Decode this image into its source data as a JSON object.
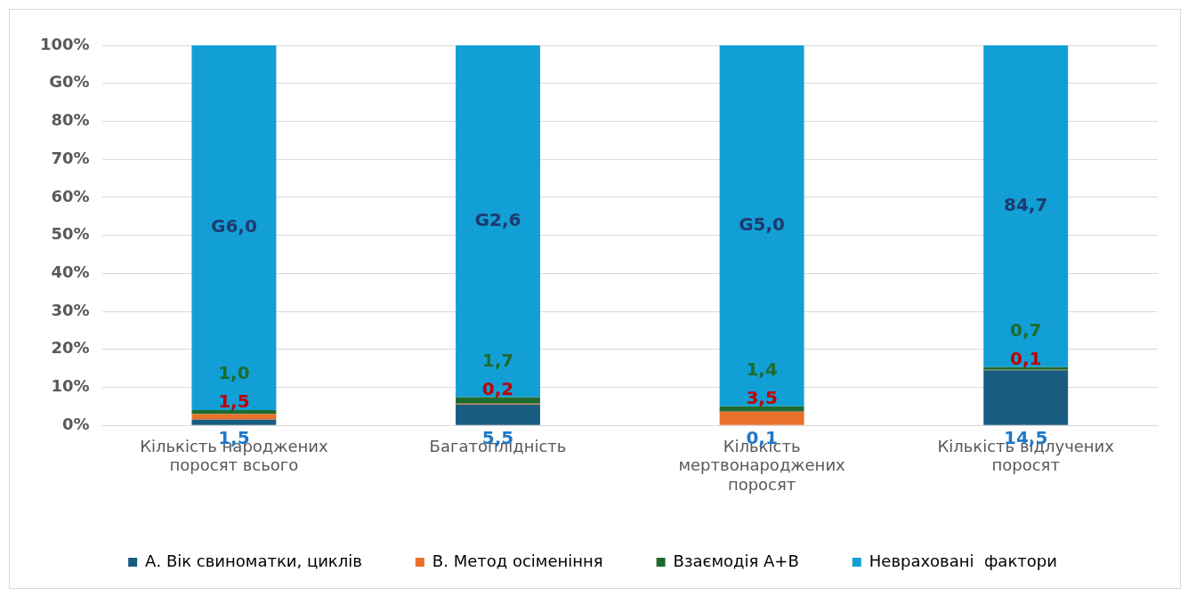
{
  "chart_data": {
    "type": "bar",
    "stacked": true,
    "categories": [
      "Кількість народжених поросят всього",
      "Багатоплідність",
      "Кількість мертвонароджених поросят",
      "Кількість відлучених поросят"
    ],
    "series": [
      {
        "name": "А. Вік свиноматки, циклів",
        "color": "#1a5c80",
        "values": [
          1.5,
          5.5,
          0.1,
          14.5
        ],
        "value_labels": [
          "1,5",
          "5,5",
          "0,1",
          "14,5"
        ]
      },
      {
        "name": "В. Метод осіменіння",
        "color": "#e8702a",
        "values": [
          1.5,
          0.2,
          3.5,
          0.1
        ],
        "value_labels": [
          "1,5",
          "0,2",
          "3,5",
          "0,1"
        ]
      },
      {
        "name": "Взаємодія А+В",
        "color": "#1e6b30",
        "values": [
          1.0,
          1.7,
          1.4,
          0.7
        ],
        "value_labels": [
          "1,0",
          "1,7",
          "1,4",
          "0,7"
        ]
      },
      {
        "name": "Невраховані  фактори",
        "color": "#129fd6",
        "values": [
          96.0,
          92.6,
          95.0,
          84.7
        ],
        "value_labels": [
          "G6,0",
          "G2,6",
          "G5,0",
          "84,7"
        ]
      }
    ],
    "ylim": [
      0,
      100
    ],
    "yticks": [
      {
        "value": 0,
        "label": "0%"
      },
      {
        "value": 10,
        "label": "10%"
      },
      {
        "value": 20,
        "label": "20%"
      },
      {
        "value": 30,
        "label": "30%"
      },
      {
        "value": 40,
        "label": "40%"
      },
      {
        "value": 50,
        "label": "50%"
      },
      {
        "value": 60,
        "label": "60%"
      },
      {
        "value": 70,
        "label": "70%"
      },
      {
        "value": 80,
        "label": "80%"
      },
      {
        "value": 90,
        "label": "G0%"
      },
      {
        "value": 100,
        "label": "100%"
      }
    ],
    "grid": "y",
    "legend": "bottom"
  }
}
